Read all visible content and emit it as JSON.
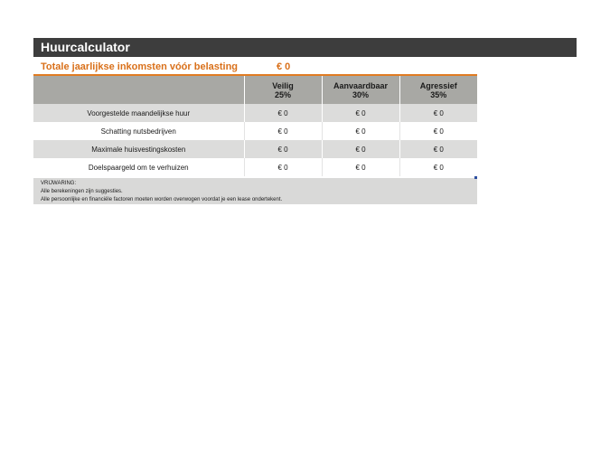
{
  "title": "Huurcalculator",
  "income": {
    "label": "Totale jaarlijkse inkomsten vóór belasting",
    "value": "€ 0"
  },
  "table": {
    "headers": [
      {
        "name": "Veilig",
        "pct": "25%"
      },
      {
        "name": "Aanvaardbaar",
        "pct": "30%"
      },
      {
        "name": "Agressief",
        "pct": "35%"
      }
    ],
    "rows": [
      {
        "label": "Voorgestelde maandelijkse huur",
        "values": [
          "€ 0",
          "€ 0",
          "€ 0"
        ]
      },
      {
        "label": "Schatting nutsbedrijven",
        "values": [
          "€ 0",
          "€ 0",
          "€ 0"
        ]
      },
      {
        "label": "Maximale huisvestingskosten",
        "values": [
          "€ 0",
          "€ 0",
          "€ 0"
        ]
      },
      {
        "label": "Doelspaargeld om te verhuizen",
        "values": [
          "€ 0",
          "€ 0",
          "€ 0"
        ]
      }
    ]
  },
  "disclaimer": {
    "heading": "VRIJWARING:",
    "line1": "Alle berekeningen zijn suggesties.",
    "line2": "Alle persoonlijke en financiële factoren moeten worden overwogen voordat je een lease ondertekent."
  },
  "colors": {
    "title_bg": "#3d3d3d",
    "accent_orange": "#e07b22",
    "header_gray": "#a8a8a4",
    "row_gray": "#dcdcdb"
  }
}
